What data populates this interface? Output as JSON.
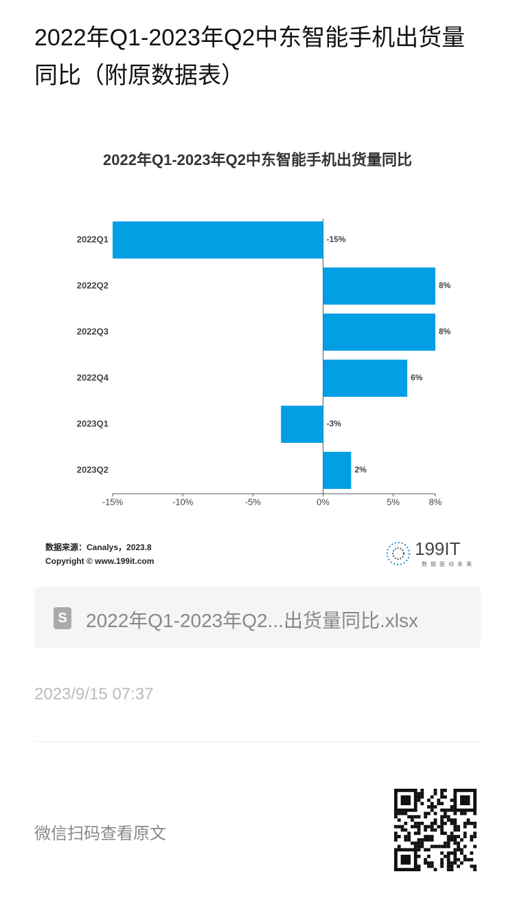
{
  "header": {
    "title": "2022年Q1-2023年Q2中东智能手机出货量同比（附原数据表）"
  },
  "chart_data": {
    "type": "hbar",
    "title": "2022年Q1-2023年Q2中东智能手机出货量同比",
    "categories": [
      "2022Q1",
      "2022Q2",
      "2022Q3",
      "2022Q4",
      "2023Q1",
      "2023Q2"
    ],
    "values": [
      -15,
      8,
      8,
      6,
      -3,
      2
    ],
    "value_labels": [
      "-15%",
      "8%",
      "8%",
      "6%",
      "-3%",
      "2%"
    ],
    "color": "#039fe5",
    "xlim": [
      -15,
      8
    ],
    "xticks": [
      {
        "value": -15,
        "label": "-15%"
      },
      {
        "value": -10,
        "label": "-10%"
      },
      {
        "value": -5,
        "label": "-5%"
      },
      {
        "value": 0,
        "label": "0%"
      },
      {
        "value": 5,
        "label": "5%"
      },
      {
        "value": 8,
        "label": "8%"
      }
    ],
    "grid": false
  },
  "source": {
    "line1": "数据来源：Canalys，2023.8",
    "line2": "Copyright © www.199it.com",
    "logo": "199IT",
    "logo_slogan": "数据驱动未来"
  },
  "attachment": {
    "name": "2022年Q1-2023年Q2...出货量同比.xlsx"
  },
  "date": "2023/9/15 07:37",
  "footer": {
    "text": "微信扫码查看原文"
  }
}
